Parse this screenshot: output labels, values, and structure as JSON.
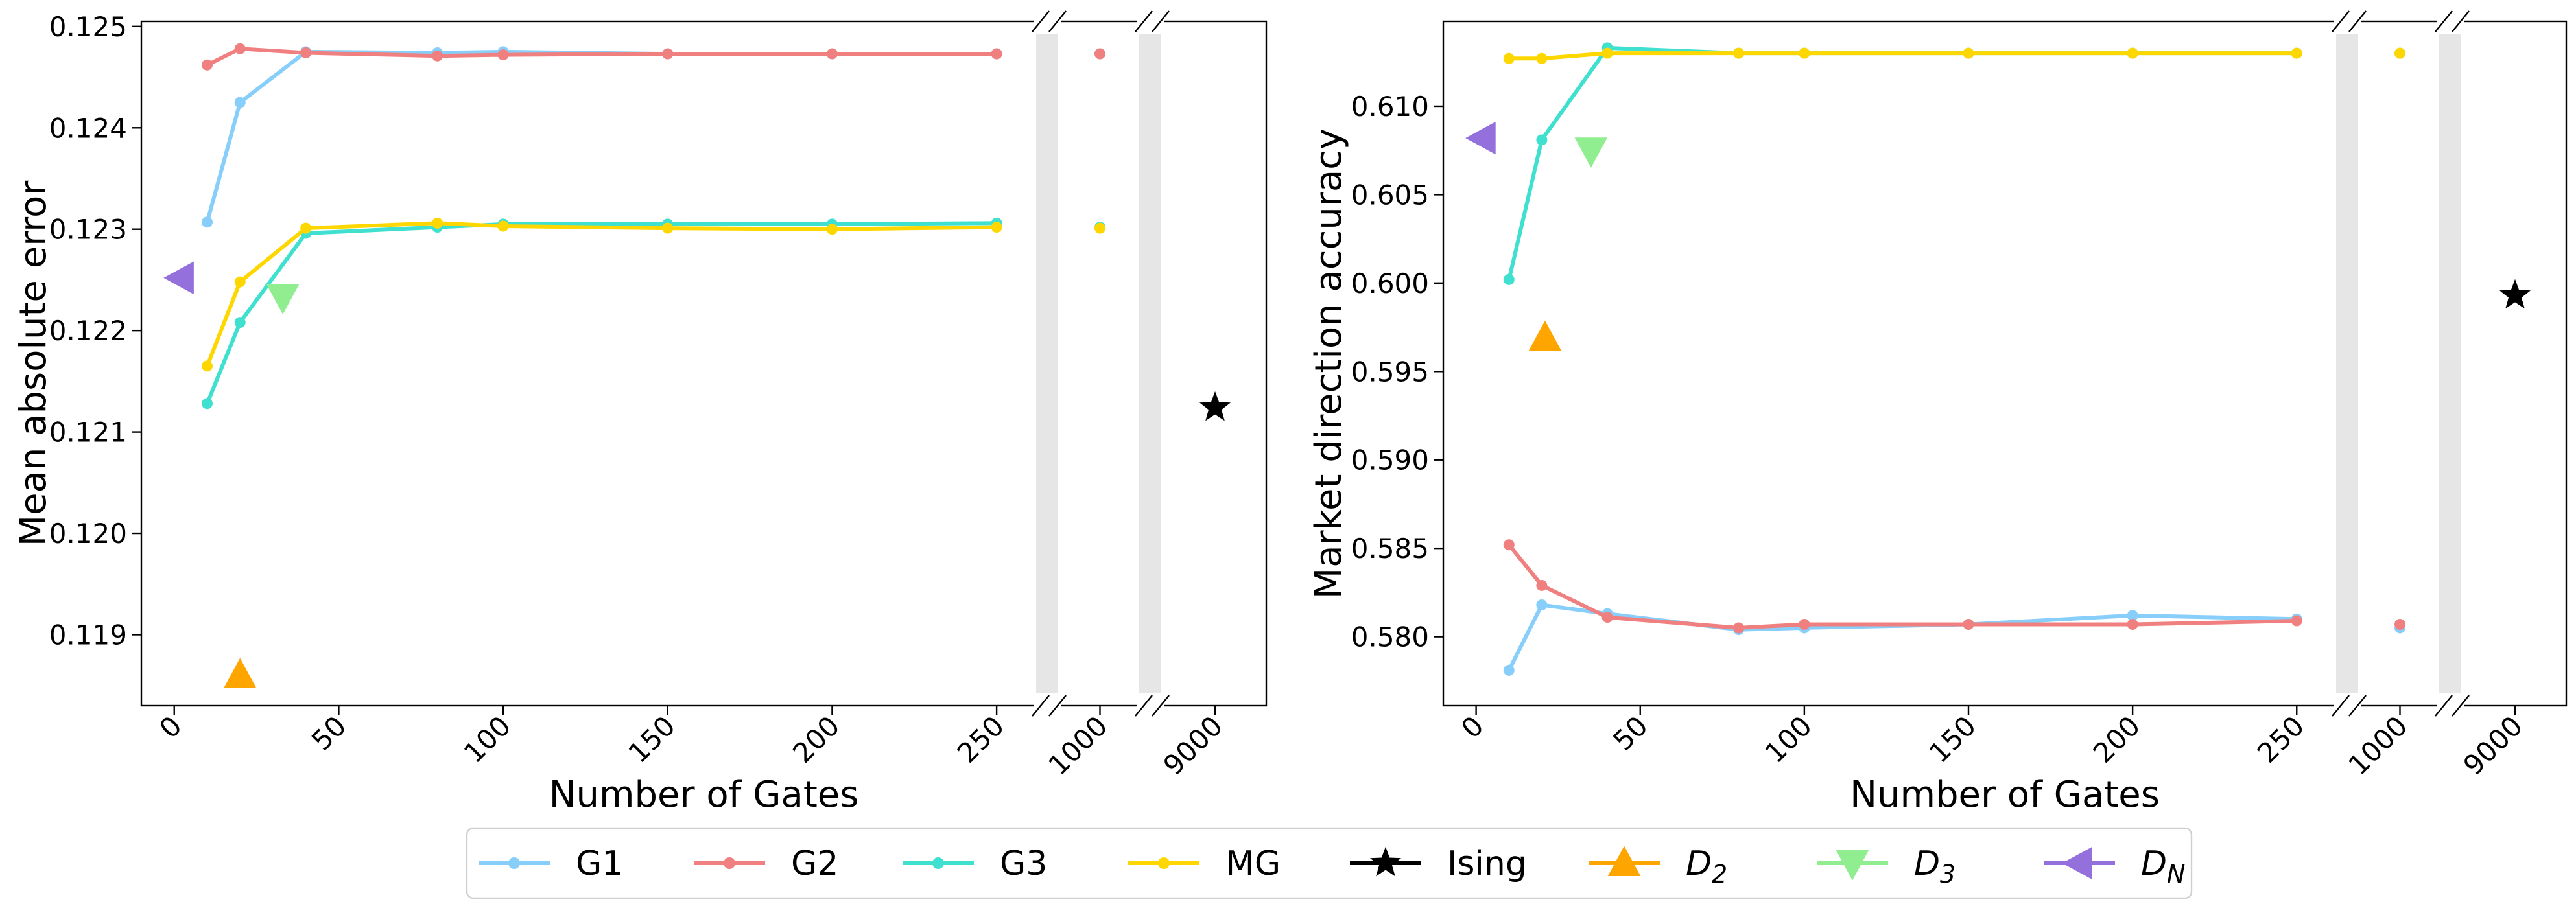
{
  "chart_data": [
    {
      "type": "line",
      "xlabel": "Number of Gates",
      "ylabel": "Mean absolute error",
      "ylim": [
        0.1183,
        0.12505
      ],
      "x_ticks": [
        "0",
        "50",
        "100",
        "150",
        "200",
        "250",
        "1000",
        "9000"
      ],
      "y_ticks": [
        "0.119",
        "0.120",
        "0.121",
        "0.122",
        "0.123",
        "0.124",
        "0.125"
      ],
      "y_tick_values": [
        0.119,
        0.12,
        0.121,
        0.122,
        0.123,
        0.124,
        0.125
      ],
      "broken_axis": {
        "segments": [
          [
            -10,
            262
          ],
          [
            990,
            1010
          ],
          [
            8990,
            9010
          ]
        ]
      },
      "grid": false,
      "series": [
        {
          "name": "G1",
          "color": "#87cefa",
          "marker": "circle",
          "x": [
            10,
            20,
            40,
            80,
            100,
            150,
            200,
            250
          ],
          "y": [
            0.12307,
            0.12425,
            0.12475,
            0.12474,
            0.12475,
            0.12473,
            0.12473,
            0.12473
          ],
          "x_extra": [
            1000
          ],
          "y_extra": [
            0.12473
          ]
        },
        {
          "name": "G2",
          "color": "#f08080",
          "marker": "circle",
          "x": [
            10,
            20,
            40,
            80,
            100,
            150,
            200,
            250
          ],
          "y": [
            0.12462,
            0.12478,
            0.12474,
            0.12471,
            0.12472,
            0.12473,
            0.12473,
            0.12473
          ],
          "x_extra": [
            1000
          ],
          "y_extra": [
            0.12473
          ]
        },
        {
          "name": "G3",
          "color": "#40e0d0",
          "marker": "circle",
          "x": [
            10,
            20,
            40,
            80,
            100,
            150,
            200,
            250
          ],
          "y": [
            0.12128,
            0.12208,
            0.12296,
            0.12302,
            0.12305,
            0.12305,
            0.12305,
            0.12306
          ],
          "x_extra": [
            1000
          ],
          "y_extra": [
            0.12302
          ]
        },
        {
          "name": "MG",
          "color": "#ffd700",
          "marker": "circle",
          "x": [
            10,
            20,
            40,
            80,
            100,
            150,
            200,
            250
          ],
          "y": [
            0.12165,
            0.12248,
            0.12301,
            0.12306,
            0.12303,
            0.12301,
            0.123,
            0.12302
          ],
          "x_extra": [
            1000
          ],
          "y_extra": [
            0.12301
          ]
        }
      ],
      "points": [
        {
          "name": "Ising",
          "color": "#000000",
          "marker": "star",
          "x": 9000,
          "y": 0.12124
        },
        {
          "name": "D2",
          "color": "#ffa500",
          "marker": "triangle-up",
          "x": 20,
          "y": 0.1186
        },
        {
          "name": "D3",
          "color": "#90ee90",
          "marker": "triangle-down",
          "x": 33,
          "y": 0.12233
        },
        {
          "name": "DN",
          "color": "#9370db",
          "marker": "triangle-left",
          "x": 2,
          "y": 0.12252
        }
      ]
    },
    {
      "type": "line",
      "xlabel": "Number of Gates",
      "ylabel": "Market direction accuracy",
      "ylim": [
        0.5761,
        0.6148
      ],
      "x_ticks": [
        "0",
        "50",
        "100",
        "150",
        "200",
        "250",
        "1000",
        "9000"
      ],
      "y_ticks": [
        "0.580",
        "0.585",
        "0.590",
        "0.595",
        "0.600",
        "0.605",
        "0.610"
      ],
      "y_tick_values": [
        0.58,
        0.585,
        0.59,
        0.595,
        0.6,
        0.605,
        0.61
      ],
      "broken_axis": {
        "segments": [
          [
            -10,
            262
          ],
          [
            990,
            1010
          ],
          [
            8990,
            9010
          ]
        ]
      },
      "grid": false,
      "series": [
        {
          "name": "G1",
          "color": "#87cefa",
          "marker": "circle",
          "x": [
            10,
            20,
            40,
            80,
            100,
            150,
            200,
            250
          ],
          "y": [
            0.5781,
            0.5818,
            0.5813,
            0.5804,
            0.5805,
            0.5807,
            0.5812,
            0.581
          ],
          "x_extra": [
            1000
          ],
          "y_extra": [
            0.5805
          ]
        },
        {
          "name": "G2",
          "color": "#f08080",
          "marker": "circle",
          "x": [
            10,
            20,
            40,
            80,
            100,
            150,
            200,
            250
          ],
          "y": [
            0.5852,
            0.5829,
            0.5811,
            0.5805,
            0.5807,
            0.5807,
            0.5807,
            0.5809
          ],
          "x_extra": [
            1000
          ],
          "y_extra": [
            0.5807
          ]
        },
        {
          "name": "G3",
          "color": "#40e0d0",
          "marker": "circle",
          "x": [
            10,
            20,
            40,
            80,
            100,
            150,
            200,
            250
          ],
          "y": [
            0.6002,
            0.6081,
            0.6133,
            0.613,
            0.613,
            0.613,
            0.613,
            0.613
          ],
          "x_extra": [
            1000
          ],
          "y_extra": [
            0.613
          ]
        },
        {
          "name": "MG",
          "color": "#ffd700",
          "marker": "circle",
          "x": [
            10,
            20,
            40,
            80,
            100,
            150,
            200,
            250
          ],
          "y": [
            0.6127,
            0.6127,
            0.613,
            0.613,
            0.613,
            0.613,
            0.613,
            0.613
          ],
          "x_extra": [
            1000
          ],
          "y_extra": [
            0.613
          ]
        }
      ],
      "points": [
        {
          "name": "Ising",
          "color": "#000000",
          "marker": "star",
          "x": 9000,
          "y": 0.5993
        },
        {
          "name": "D2",
          "color": "#ffa500",
          "marker": "triangle-up",
          "x": 21,
          "y": 0.5969
        },
        {
          "name": "D3",
          "color": "#90ee90",
          "marker": "triangle-down",
          "x": 35,
          "y": 0.6075
        },
        {
          "name": "DN",
          "color": "#9370db",
          "marker": "triangle-left",
          "x": 2,
          "y": 0.6082
        }
      ]
    }
  ],
  "legend": {
    "placement": "bottom-center",
    "entries": [
      {
        "label": "G1",
        "color": "#87cefa",
        "marker": "circle",
        "line": true
      },
      {
        "label": "G2",
        "color": "#f08080",
        "marker": "circle",
        "line": true
      },
      {
        "label": "G3",
        "color": "#40e0d0",
        "marker": "circle",
        "line": true
      },
      {
        "label": "MG",
        "color": "#ffd700",
        "marker": "circle",
        "line": true
      },
      {
        "label": "Ising",
        "color": "#000000",
        "marker": "star",
        "line": true
      },
      {
        "label": "D",
        "sub": "2",
        "color": "#ffa500",
        "marker": "triangle-up",
        "line": true
      },
      {
        "label": "D",
        "sub": "3",
        "color": "#90ee90",
        "marker": "triangle-down",
        "line": true
      },
      {
        "label": "D",
        "sub": "N",
        "color": "#9370db",
        "marker": "triangle-left",
        "line": true
      }
    ]
  }
}
